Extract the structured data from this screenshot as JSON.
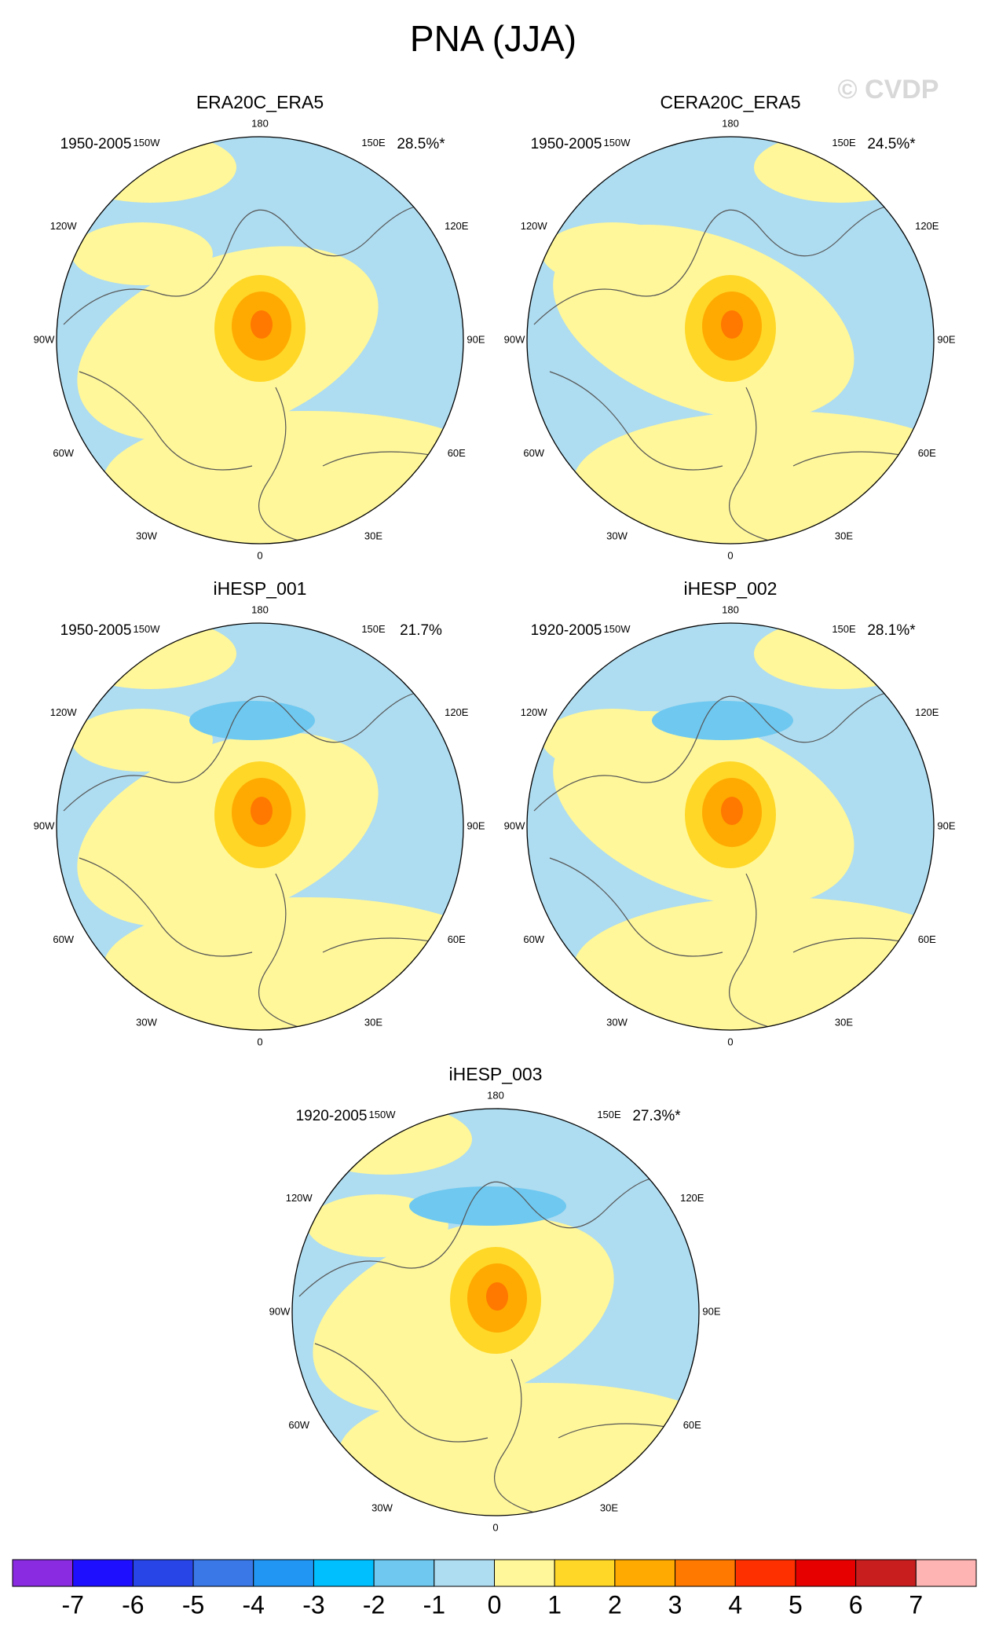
{
  "title": "PNA (JJA)",
  "watermark": "© CVDP",
  "lon_labels": [
    "180",
    "150E",
    "120E",
    "90E",
    "60E",
    "30E",
    "0",
    "30W",
    "60W",
    "90W",
    "120W",
    "150W"
  ],
  "panels": [
    {
      "title": "ERA20C_ERA5",
      "period": "1950-2005",
      "percent": "28.5%*"
    },
    {
      "title": "CERA20C_ERA5",
      "period": "1950-2005",
      "percent": "24.5%*"
    },
    {
      "title": "iHESP_001",
      "period": "1950-2005",
      "percent": "21.7%"
    },
    {
      "title": "iHESP_002",
      "period": "1920-2005",
      "percent": "28.1%*"
    },
    {
      "title": "iHESP_003",
      "period": "1920-2005",
      "percent": "27.3%*"
    }
  ],
  "colorbar": {
    "labels": [
      "-7",
      "-6",
      "-5",
      "-4",
      "-3",
      "-2",
      "-1",
      "0",
      "1",
      "2",
      "3",
      "4",
      "5",
      "6",
      "7"
    ],
    "colors": [
      "#8a2be2",
      "#1e10ff",
      "#2846e8",
      "#3a78e8",
      "#2196f3",
      "#00bfff",
      "#6ec8f0",
      "#aedcf0",
      "#fff79a",
      "#ffd727",
      "#ffaa00",
      "#ff7800",
      "#ff3000",
      "#e60000",
      "#c81e1e",
      "#ffb4b4"
    ]
  }
}
